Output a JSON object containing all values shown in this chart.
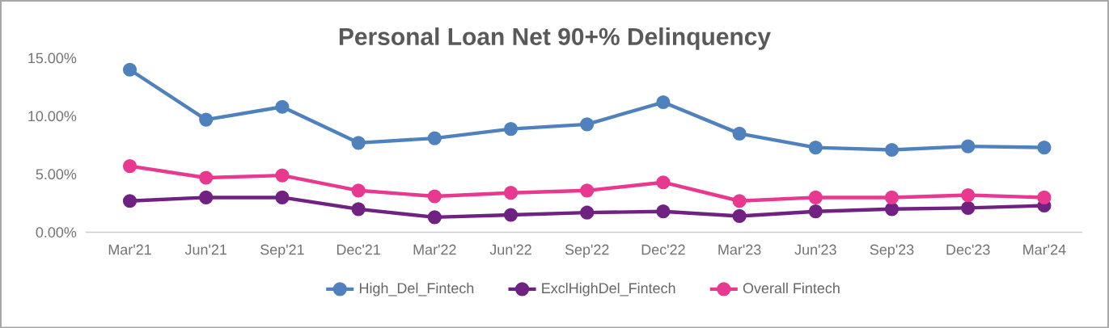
{
  "chart_data": {
    "type": "line",
    "title": "Personal Loan Net 90+% Delinquency",
    "categories": [
      "Mar'21",
      "Jun'21",
      "Sep'21",
      "Dec'21",
      "Mar'22",
      "Jun'22",
      "Sep'22",
      "Dec'22",
      "Mar'23",
      "Jun'23",
      "Sep'23",
      "Dec'23",
      "Mar'24"
    ],
    "series": [
      {
        "name": "High_Del_Fintech",
        "color": "#4f81bd",
        "values": [
          14.0,
          9.7,
          10.8,
          7.7,
          8.1,
          8.9,
          9.3,
          11.2,
          8.5,
          7.3,
          7.1,
          7.4,
          7.3
        ]
      },
      {
        "name": "ExclHighDel_Fintech",
        "color": "#702283",
        "values": [
          2.7,
          3.0,
          3.0,
          2.0,
          1.3,
          1.5,
          1.7,
          1.8,
          1.4,
          1.8,
          2.0,
          2.1,
          2.3
        ]
      },
      {
        "name": "Overall Fintech",
        "color": "#e8388f",
        "values": [
          5.7,
          4.7,
          4.9,
          3.6,
          3.1,
          3.4,
          3.6,
          4.3,
          2.7,
          3.0,
          3.0,
          3.2,
          3.0
        ]
      }
    ],
    "ylim": [
      0,
      15
    ],
    "yticks": [
      {
        "value": 0,
        "label": "0.00%"
      },
      {
        "value": 5,
        "label": "5.00%"
      },
      {
        "value": 10,
        "label": "10.00%"
      },
      {
        "value": 15,
        "label": "15.00%"
      }
    ],
    "legend": "bottom",
    "marker": "circle",
    "line_style": "solid"
  }
}
